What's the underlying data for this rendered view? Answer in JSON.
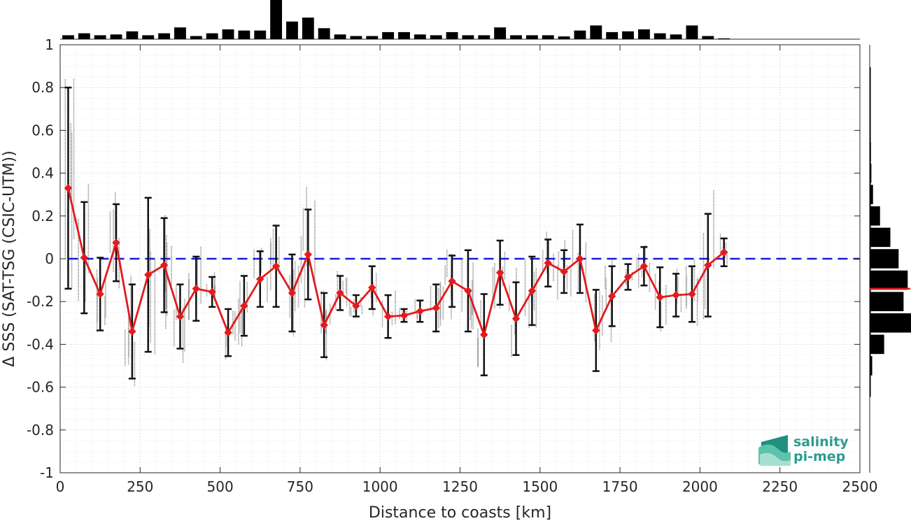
{
  "chart_data": {
    "type": "scatter",
    "xlabel": "Distance to coasts [km]",
    "ylabel": "Δ SSS (SAT-TSG (CSIC-UTM))",
    "xlim": [
      0,
      2500
    ],
    "ylim": [
      -1,
      1
    ],
    "x_ticks": [
      0,
      250,
      500,
      750,
      1000,
      1250,
      1500,
      1750,
      2000,
      2250,
      2500
    ],
    "y_ticks": [
      -1,
      -0.8,
      -0.6,
      -0.4,
      -0.2,
      0,
      0.2,
      0.4,
      0.6,
      0.8,
      1
    ],
    "x_tick_labels": [
      "0",
      "250",
      "500",
      "750",
      "1000",
      "1250",
      "1500",
      "1750",
      "2000",
      "2250",
      "2500"
    ],
    "y_tick_labels": [
      "-1",
      "-0.8",
      "-0.6",
      "-0.4",
      "-0.2",
      "0",
      "0.2",
      "0.4",
      "0.6",
      "0.8",
      "1"
    ],
    "grid": true,
    "reference_line": {
      "y": 0,
      "style": "dashed",
      "color": "#1a1adb"
    },
    "binned_mean": {
      "color": "#e41a1c",
      "marker": "diamond",
      "x": [
        25,
        75,
        125,
        175,
        225,
        275,
        325,
        375,
        425,
        475,
        525,
        575,
        625,
        675,
        725,
        775,
        825,
        875,
        925,
        975,
        1025,
        1075,
        1125,
        1175,
        1225,
        1275,
        1325,
        1375,
        1425,
        1475,
        1525,
        1575,
        1625,
        1675,
        1725,
        1775,
        1825,
        1875,
        1925,
        1975,
        2025,
        2075
      ],
      "y": [
        0.33,
        0.005,
        -0.165,
        0.075,
        -0.34,
        -0.075,
        -0.03,
        -0.27,
        -0.14,
        -0.155,
        -0.345,
        -0.22,
        -0.095,
        -0.035,
        -0.16,
        0.02,
        -0.31,
        -0.16,
        -0.22,
        -0.135,
        -0.27,
        -0.265,
        -0.245,
        -0.23,
        -0.105,
        -0.15,
        -0.355,
        -0.065,
        -0.28,
        -0.15,
        -0.02,
        -0.06,
        0.0,
        -0.335,
        -0.175,
        -0.085,
        -0.035,
        -0.18,
        -0.17,
        -0.165,
        -0.03,
        0.03
      ],
      "std": [
        0.47,
        0.26,
        0.17,
        0.18,
        0.22,
        0.36,
        0.22,
        0.15,
        0.15,
        0.07,
        0.11,
        0.14,
        0.13,
        0.19,
        0.18,
        0.21,
        0.15,
        0.08,
        0.05,
        0.1,
        0.1,
        0.03,
        0.05,
        0.11,
        0.12,
        0.19,
        0.19,
        0.15,
        0.17,
        0.16,
        0.11,
        0.1,
        0.16,
        0.19,
        0.14,
        0.06,
        0.09,
        0.14,
        0.1,
        0.13,
        0.24,
        0.065
      ]
    },
    "scatter_color": "#808080",
    "top_histogram": {
      "bin_width": 50,
      "counts": [
        0.1,
        0.15,
        0.1,
        0.12,
        0.2,
        0.1,
        0.15,
        0.3,
        0.08,
        0.15,
        0.25,
        0.22,
        0.22,
        1.0,
        0.45,
        0.55,
        0.28,
        0.12,
        0.08,
        0.08,
        0.18,
        0.18,
        0.12,
        0.1,
        0.18,
        0.1,
        0.1,
        0.3,
        0.1,
        0.1,
        0.1,
        0.07,
        0.22,
        0.35,
        0.18,
        0.2,
        0.25,
        0.15,
        0.12,
        0.35,
        0.08,
        0.02,
        0,
        0,
        0,
        0,
        0,
        0,
        0,
        0
      ]
    },
    "right_histogram": {
      "bin_centers": [
        -0.6,
        -0.55,
        -0.5,
        -0.45,
        -0.4,
        -0.35,
        -0.3,
        -0.25,
        -0.2,
        -0.15,
        -0.1,
        -0.05,
        0,
        0.05,
        0.1,
        0.15,
        0.2,
        0.25,
        0.3,
        0.35,
        0.4,
        0.45,
        0.5,
        0.55,
        0.6,
        0.65,
        0.7,
        0.75,
        0.8,
        0.85
      ],
      "counts": [
        0.02,
        0,
        0.06,
        0,
        0.35,
        0,
        1.0,
        0,
        0.82,
        0,
        0.92,
        0,
        0.7,
        0,
        0.5,
        0,
        0.25,
        0,
        0.08,
        0,
        0.04,
        0,
        0.03,
        0,
        0.02,
        0,
        0.02,
        0,
        0.02,
        0
      ],
      "mean_line": {
        "y": -0.14,
        "color": "#e41a1c"
      }
    }
  },
  "logo": {
    "line1": "salinity",
    "line2": "pi-mep"
  }
}
